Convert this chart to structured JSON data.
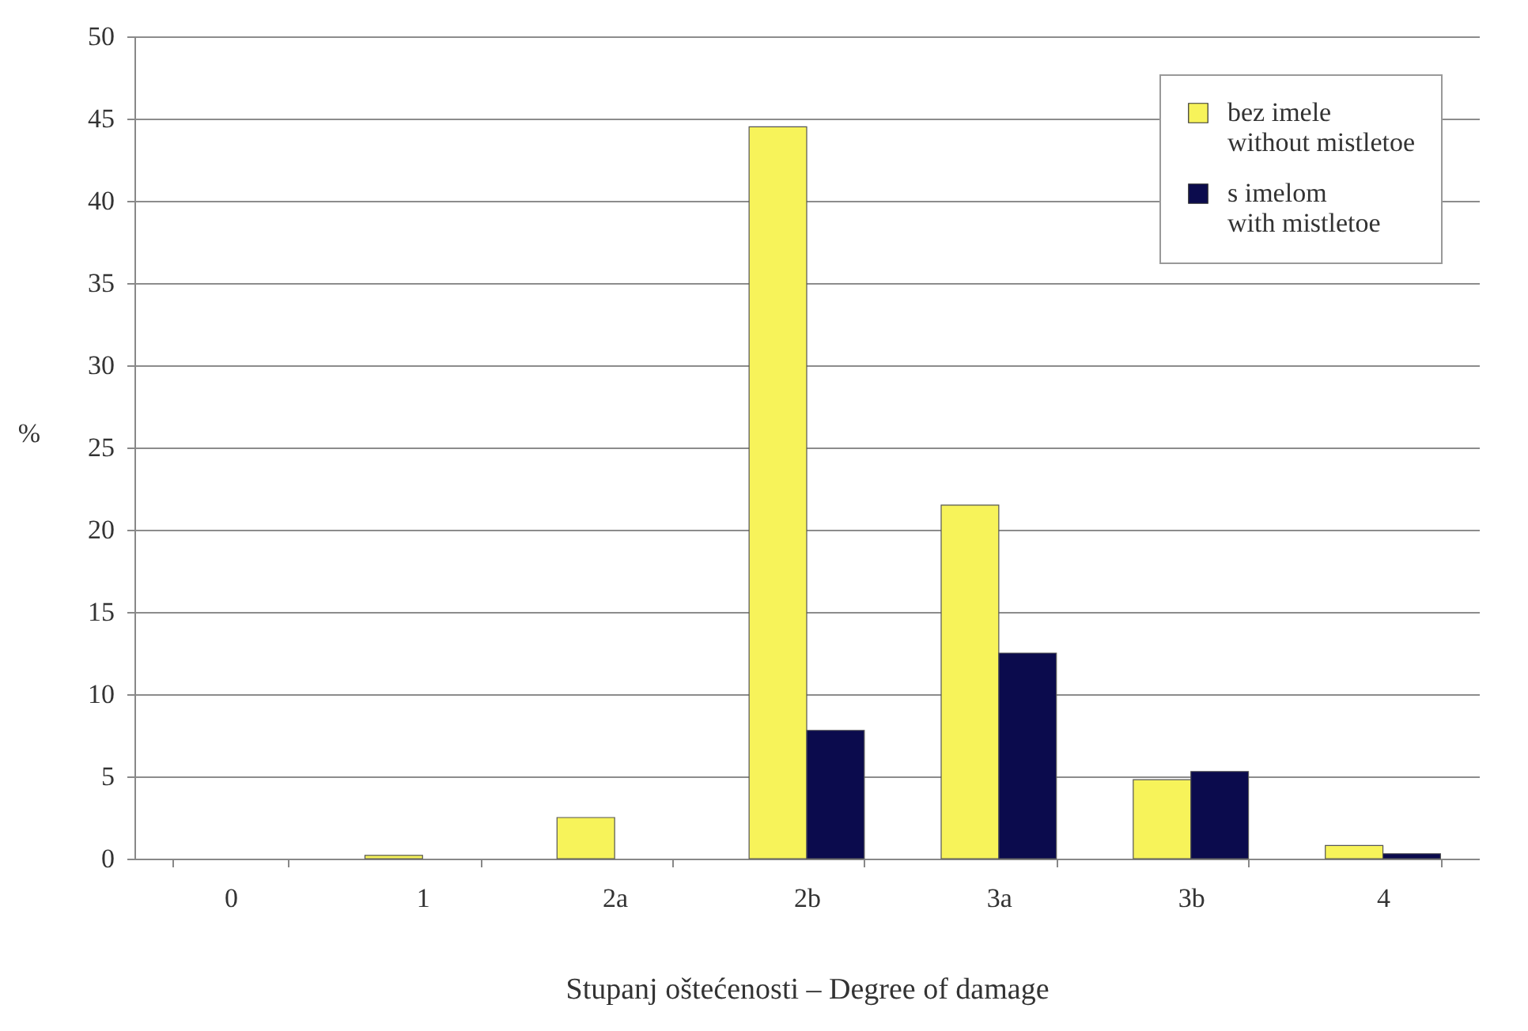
{
  "chart_data": {
    "type": "bar",
    "xlabel": "Stupanj oštećenosti – Degree of damage",
    "ylabel": "%",
    "categories": [
      "0",
      "1",
      "2a",
      "2b",
      "3a",
      "3b",
      "4"
    ],
    "series": [
      {
        "name": "bez imele\nwithout mistletoe",
        "color": "#f7f35a",
        "values": [
          0,
          0.2,
          2.5,
          44.5,
          21.5,
          4.8,
          0.8
        ]
      },
      {
        "name": "s imelom\nwith mistletoe",
        "color": "#0b0b4d",
        "values": [
          0,
          0,
          0,
          7.8,
          12.5,
          5.3,
          0.3
        ]
      }
    ],
    "ylim": [
      0,
      50
    ],
    "yticks": [
      0,
      5,
      10,
      15,
      20,
      25,
      30,
      35,
      40,
      45,
      50
    ],
    "grid": "y",
    "legend": "top right"
  }
}
